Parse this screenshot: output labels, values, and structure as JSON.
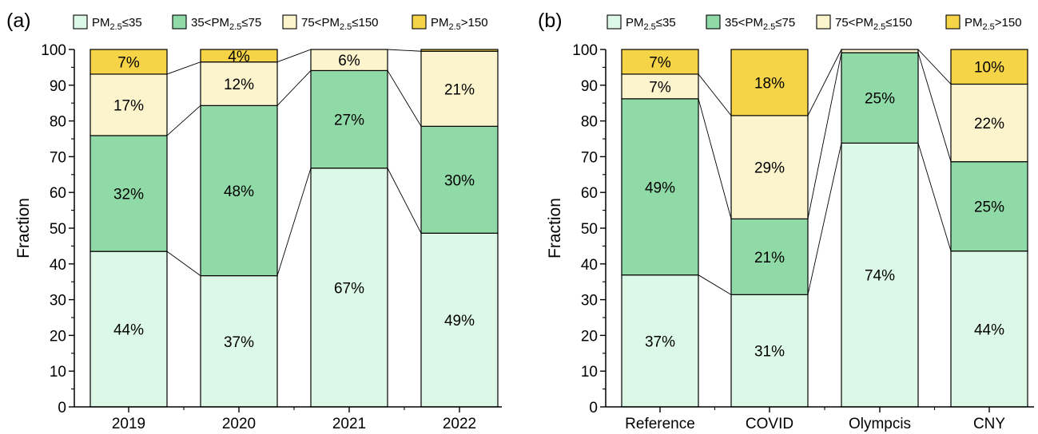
{
  "colors": {
    "PM25_le35": "#dcf8e6",
    "PM25_35_75": "#8fdaa6",
    "PM25_75_150": "#fbf4cd",
    "PM25_gt150": "#f6d448"
  },
  "legend": [
    {
      "key": "PM25_le35",
      "pre": "PM",
      "sub": "2.5",
      "post": "≤35"
    },
    {
      "key": "PM25_35_75",
      "pre": "35<PM",
      "sub": "2.5",
      "post": "≤75"
    },
    {
      "key": "PM25_75_150",
      "pre": "75<PM",
      "sub": "2.5",
      "post": "≤150"
    },
    {
      "key": "PM25_gt150",
      "pre": "PM",
      "sub": "2.5",
      "post": ">150"
    }
  ],
  "chart_data": [
    {
      "type": "bar",
      "stacked": true,
      "panel_label": "(a)",
      "ylabel": "Fraction",
      "ylim": [
        0,
        100
      ],
      "yticks": [
        0,
        10,
        20,
        30,
        40,
        50,
        60,
        70,
        80,
        90,
        100
      ],
      "categories": [
        "2019",
        "2020",
        "2021",
        "2022"
      ],
      "series": [
        {
          "key": "PM25_le35",
          "values": [
            43.5,
            36.7,
            66.8,
            48.6
          ],
          "labels": [
            "44%",
            "37%",
            "67%",
            "49%"
          ]
        },
        {
          "key": "PM25_35_75",
          "values": [
            32.4,
            47.6,
            27.3,
            29.9
          ],
          "labels": [
            "32%",
            "48%",
            "27%",
            "30%"
          ]
        },
        {
          "key": "PM25_75_150",
          "values": [
            17.2,
            12.2,
            5.9,
            21.0
          ],
          "labels": [
            "17%",
            "12%",
            "6%",
            "21%"
          ]
        },
        {
          "key": "PM25_gt150",
          "values": [
            6.9,
            3.5,
            0.0,
            0.5
          ],
          "labels": [
            "7%",
            "4%",
            "",
            ""
          ]
        }
      ]
    },
    {
      "type": "bar",
      "stacked": true,
      "panel_label": "(b)",
      "ylabel": "Fraction",
      "ylim": [
        0,
        100
      ],
      "yticks": [
        0,
        10,
        20,
        30,
        40,
        50,
        60,
        70,
        80,
        90,
        100
      ],
      "categories": [
        "Reference",
        "COVID",
        "Olympcis",
        "CNY"
      ],
      "series": [
        {
          "key": "PM25_le35",
          "values": [
            36.9,
            31.4,
            73.8,
            43.6
          ],
          "labels": [
            "37%",
            "31%",
            "74%",
            "44%"
          ]
        },
        {
          "key": "PM25_35_75",
          "values": [
            49.3,
            21.2,
            25.3,
            25.0
          ],
          "labels": [
            "49%",
            "21%",
            "25%",
            "25%"
          ]
        },
        {
          "key": "PM25_75_150",
          "values": [
            6.9,
            28.9,
            0.9,
            21.7
          ],
          "labels": [
            "7%",
            "29%",
            "",
            "22%"
          ]
        },
        {
          "key": "PM25_gt150",
          "values": [
            6.9,
            18.5,
            0.0,
            9.7
          ],
          "labels": [
            "7%",
            "18%",
            "",
            "10%"
          ]
        }
      ]
    }
  ]
}
